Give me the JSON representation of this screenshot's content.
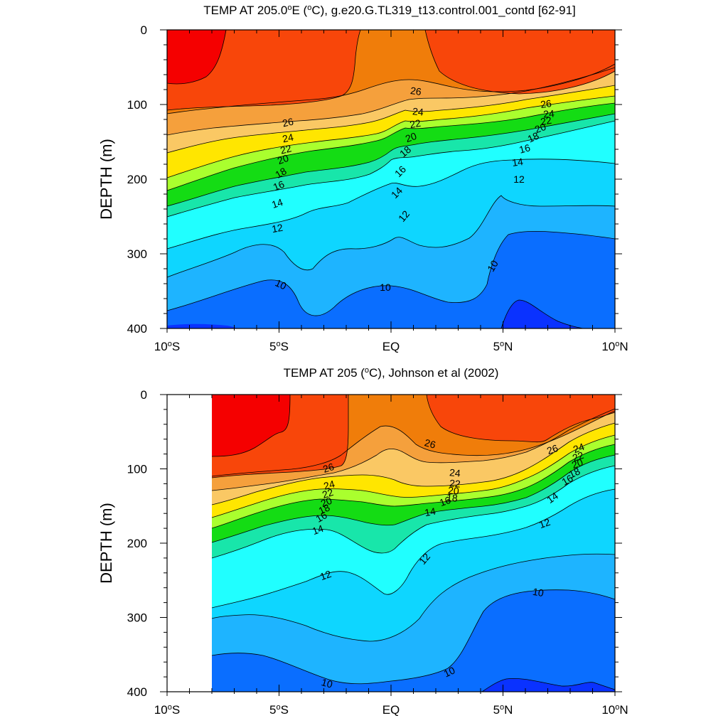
{
  "colors": {
    "ge_30": "#f50000",
    "26_30": "#f8460a",
    "26_28": "#f07d0a",
    "24_26": "#f5a03c",
    "22_24": "#fac864",
    "20_22": "#ffe600",
    "18_20": "#aaff2e",
    "16_18": "#14dc14",
    "14_16": "#18e6aa",
    "12_14": "#20ffff",
    "11_12": "#0ed6ff",
    "10_11": "#1eb4ff",
    "lt_10": "#0a6eff",
    "deep": "#0a32ff"
  },
  "chart_data": [
    {
      "type": "contour",
      "title_pre": "TEMP AT 205.0",
      "title_deg": "o",
      "title_mid": "E (",
      "title_deg2": "o",
      "title_post": "C), g.e20.G.TL319_t13.control.001_contd [62-91]",
      "ylabel": "DEPTH (m)",
      "xlim": [
        -10,
        10
      ],
      "ylim": [
        400,
        0
      ],
      "y_ticks": [
        "0",
        "100",
        "200",
        "300",
        "400"
      ],
      "x_ticks": [
        {
          "num": "10",
          "deg": "o",
          "hemi": "S"
        },
        {
          "num": "5",
          "deg": "o",
          "hemi": "S"
        },
        {
          "num": "EQ",
          "deg": "",
          "hemi": ""
        },
        {
          "num": "5",
          "deg": "o",
          "hemi": "N"
        },
        {
          "num": "10",
          "deg": "o",
          "hemi": "N"
        }
      ],
      "contour_labels": [
        "26",
        "24",
        "22",
        "20",
        "18",
        "16",
        "14",
        "12",
        "10",
        "10",
        "26",
        "24",
        "22",
        "20",
        "18",
        "16",
        "14",
        "12",
        "26",
        "24",
        "22",
        "20",
        "18",
        "16",
        "14",
        "12",
        "10"
      ]
    },
    {
      "type": "contour",
      "title_pre": "TEMP AT 205 (",
      "title_deg": "o",
      "title_post": "C), Johnson et al (2002)",
      "ylabel": "DEPTH (m)",
      "xlim": [
        -10,
        10
      ],
      "ylim": [
        400,
        0
      ],
      "data_start_lon": -8,
      "y_ticks": [
        "0",
        "100",
        "200",
        "300",
        "400"
      ],
      "x_ticks": [
        {
          "num": "10",
          "deg": "o",
          "hemi": "S"
        },
        {
          "num": "5",
          "deg": "o",
          "hemi": "S"
        },
        {
          "num": "EQ",
          "deg": "",
          "hemi": ""
        },
        {
          "num": "5",
          "deg": "o",
          "hemi": "N"
        },
        {
          "num": "10",
          "deg": "o",
          "hemi": "N"
        }
      ],
      "contour_labels": [
        "26",
        "24",
        "22",
        "20",
        "18",
        "16",
        "14",
        "12",
        "10",
        "26",
        "24",
        "22",
        "20",
        "18",
        "16",
        "14",
        "12",
        "10",
        "26",
        "24",
        "22",
        "20",
        "18",
        "16",
        "14",
        "12",
        "10"
      ]
    }
  ]
}
